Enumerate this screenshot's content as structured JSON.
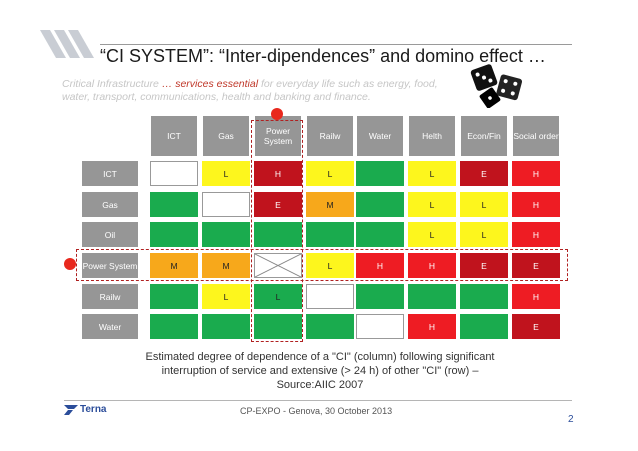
{
  "title": "“CI SYSTEM”: “Inter-dipendences” and domino effect …",
  "subtitle": {
    "part1": "Critical Infrastructure ",
    "highlight": "… services essential",
    "part2": " for everyday life such as energy, food, water, transport, communications, health and banking and finance."
  },
  "columns": [
    "ICT",
    "Gas",
    "Power System",
    "Railw",
    "Water",
    "Helth",
    "Econ/Fin",
    "Social order"
  ],
  "rows": [
    {
      "label": "ICT",
      "cells": [
        {
          "color": "white",
          "text": ""
        },
        {
          "color": "yellow",
          "text": "L"
        },
        {
          "color": "darkred",
          "text": "H"
        },
        {
          "color": "yellow",
          "text": "L"
        },
        {
          "color": "green",
          "text": ""
        },
        {
          "color": "yellow",
          "text": "L"
        },
        {
          "color": "darkred",
          "text": "E"
        },
        {
          "color": "red",
          "text": "H"
        }
      ]
    },
    {
      "label": "Gas",
      "cells": [
        {
          "color": "green",
          "text": ""
        },
        {
          "color": "white",
          "text": ""
        },
        {
          "color": "darkred",
          "text": "E"
        },
        {
          "color": "orange",
          "text": "M"
        },
        {
          "color": "green",
          "text": ""
        },
        {
          "color": "yellow",
          "text": "L"
        },
        {
          "color": "yellow",
          "text": "L"
        },
        {
          "color": "red",
          "text": "H"
        }
      ]
    },
    {
      "label": "Oil",
      "cells": [
        {
          "color": "green",
          "text": ""
        },
        {
          "color": "green",
          "text": ""
        },
        {
          "color": "green",
          "text": ""
        },
        {
          "color": "green",
          "text": ""
        },
        {
          "color": "green",
          "text": ""
        },
        {
          "color": "yellow",
          "text": "L"
        },
        {
          "color": "yellow",
          "text": "L"
        },
        {
          "color": "red",
          "text": "H"
        }
      ]
    },
    {
      "label": "Power System",
      "cells": [
        {
          "color": "orange",
          "text": "M"
        },
        {
          "color": "orange",
          "text": "M"
        },
        {
          "color": "cross",
          "text": ""
        },
        {
          "color": "yellow",
          "text": "L"
        },
        {
          "color": "red",
          "text": "H"
        },
        {
          "color": "red",
          "text": "H"
        },
        {
          "color": "darkred",
          "text": "E"
        },
        {
          "color": "darkred",
          "text": "E"
        }
      ]
    },
    {
      "label": "Railw",
      "cells": [
        {
          "color": "green",
          "text": ""
        },
        {
          "color": "yellow",
          "text": "L"
        },
        {
          "color": "green",
          "text": "L"
        },
        {
          "color": "white",
          "text": ""
        },
        {
          "color": "green",
          "text": ""
        },
        {
          "color": "green",
          "text": ""
        },
        {
          "color": "green",
          "text": ""
        },
        {
          "color": "red",
          "text": "H"
        }
      ]
    },
    {
      "label": "Water",
      "cells": [
        {
          "color": "green",
          "text": ""
        },
        {
          "color": "green",
          "text": ""
        },
        {
          "color": "green",
          "text": ""
        },
        {
          "color": "green",
          "text": ""
        },
        {
          "color": "white",
          "text": ""
        },
        {
          "color": "red",
          "text": "H"
        },
        {
          "color": "green",
          "text": ""
        },
        {
          "color": "darkred",
          "text": "E"
        }
      ]
    }
  ],
  "caption": {
    "line1": "Estimated degree of dependence of a \"CI\" (column) following significant",
    "line2": "interruption of service and extensive (> 24 h) of other \"CI\" (row) –",
    "line3": "Source:AIIC 2007"
  },
  "logo_text": "Terna",
  "footer": "CP-EXPO - Genova, 30 October 2013",
  "page_number": "2",
  "colors": {
    "white": "#ffffff",
    "green": "#1aab4e",
    "yellow": "#fdf61d",
    "orange": "#f7a81b",
    "red": "#ee1c23",
    "darkred": "#c0131d",
    "header_gray": "#969696",
    "highlight": "#b02121"
  }
}
